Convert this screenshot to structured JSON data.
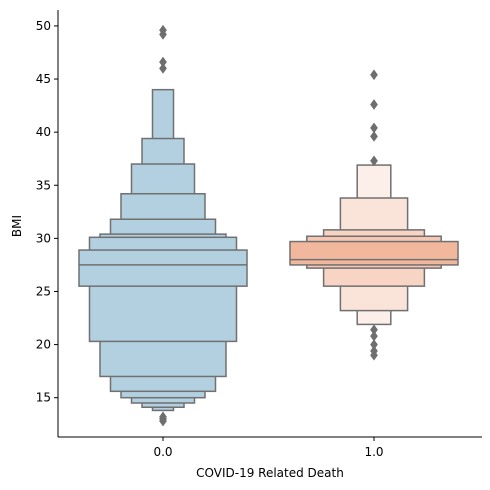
{
  "chart_data": {
    "type": "boxen",
    "xlabel": "COVID-19 Related Death",
    "ylabel": "BMI",
    "ylim": [
      11.3,
      51.5
    ],
    "yticks": [
      15,
      20,
      25,
      30,
      35,
      40,
      45,
      50
    ],
    "grid": false,
    "categories": [
      "0.0",
      "1.0"
    ],
    "series": [
      {
        "category": "0.0",
        "color": "#b3d0e0",
        "median": 27.5,
        "boxes": [
          {
            "low": 25.5,
            "high": 28.9
          },
          {
            "low": 20.3,
            "high": 30.1
          },
          {
            "low": 17.0,
            "high": 30.4
          },
          {
            "low": 15.6,
            "high": 31.8
          },
          {
            "low": 15.0,
            "high": 34.2
          },
          {
            "low": 14.5,
            "high": 37.0
          },
          {
            "low": 14.1,
            "high": 39.4
          },
          {
            "low": 13.8,
            "high": 44.0
          }
        ],
        "outliers": [
          12.8,
          13.0,
          13.2,
          46.0,
          46.6,
          49.2,
          49.6
        ]
      },
      {
        "category": "1.0",
        "color": "#f2b89d",
        "median": 28.0,
        "boxes": [
          {
            "low": 27.5,
            "high": 29.7
          },
          {
            "low": 27.2,
            "high": 30.2
          },
          {
            "low": 25.5,
            "high": 30.8
          },
          {
            "low": 23.2,
            "high": 33.8
          },
          {
            "low": 21.9,
            "high": 36.9
          }
        ],
        "outliers": [
          19.0,
          19.4,
          20.0,
          20.8,
          21.4,
          37.3,
          39.6,
          40.4,
          42.6,
          45.4
        ]
      }
    ]
  }
}
